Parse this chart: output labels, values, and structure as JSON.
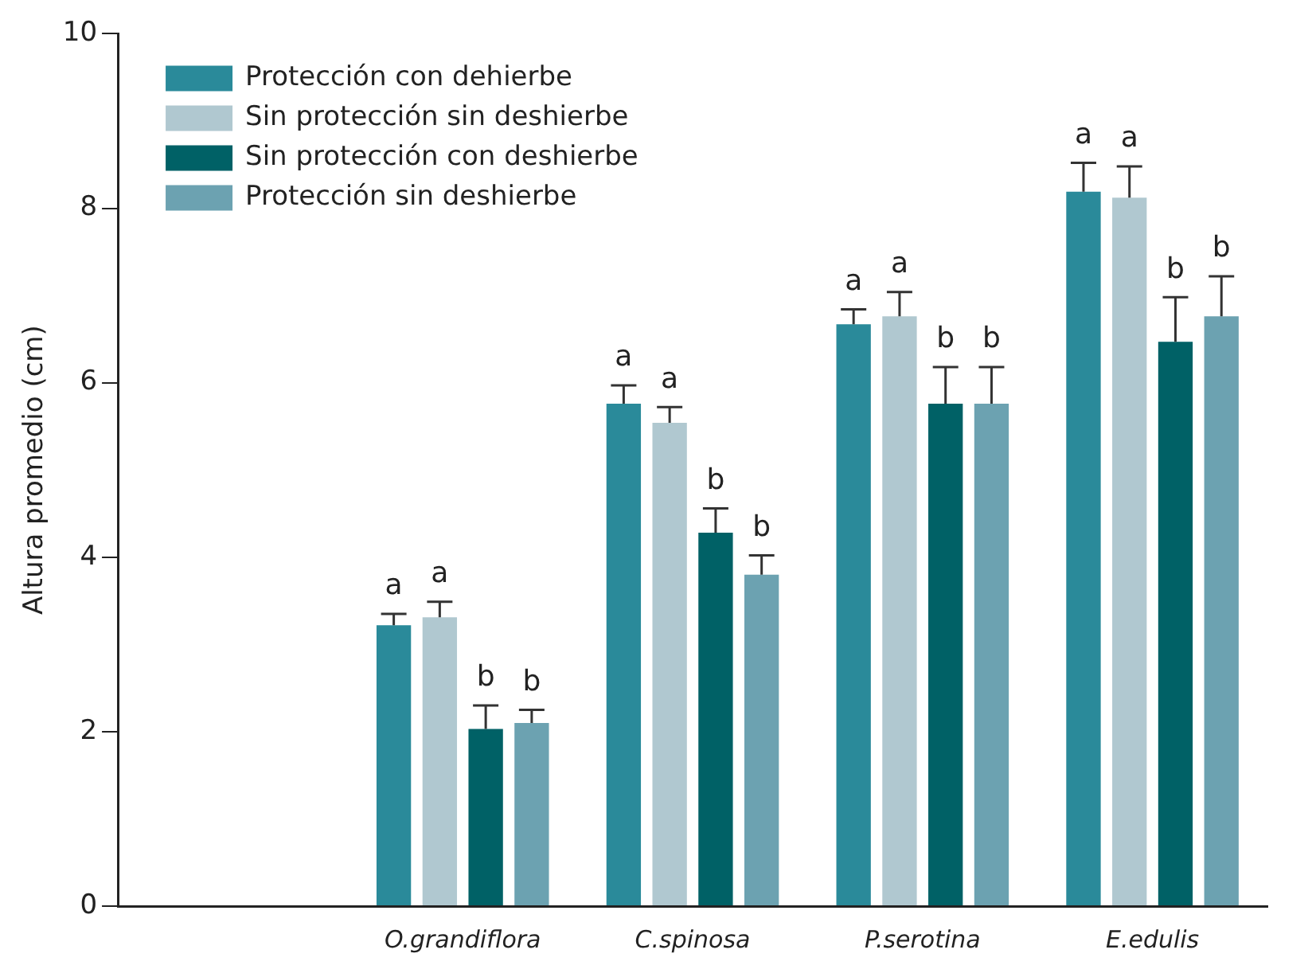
{
  "chart_data": {
    "type": "bar",
    "ylabel": "Altura promedio (cm)",
    "categories": [
      null,
      "O.grandiflora",
      "C.spinosa",
      "P.serotina",
      "E.edulis"
    ],
    "ylim": [
      0,
      10
    ],
    "yticks": [
      0,
      2,
      4,
      6,
      8,
      10
    ],
    "grid": false,
    "legend": "top left",
    "series": [
      {
        "name": "Protección con dehierbe",
        "color": "#2a8a9a",
        "values": [
          null,
          3.22,
          5.76,
          6.67,
          8.19
        ],
        "errors": [
          null,
          0.13,
          0.21,
          0.17,
          0.33
        ],
        "value_labels": [
          null,
          "a",
          "a",
          "a",
          "a"
        ]
      },
      {
        "name": "Sin protección sin deshierbe",
        "color": "#b0c8d0",
        "values": [
          null,
          3.31,
          5.54,
          6.76,
          8.12
        ],
        "errors": [
          null,
          0.18,
          0.18,
          0.28,
          0.36
        ],
        "value_labels": [
          null,
          "a",
          "a",
          "a",
          "a"
        ]
      },
      {
        "name": "Sin protección con deshierbe",
        "color": "#006166",
        "values": [
          null,
          2.03,
          4.28,
          5.76,
          6.47
        ],
        "errors": [
          null,
          0.27,
          0.28,
          0.42,
          0.51
        ],
        "value_labels": [
          null,
          "b",
          "b",
          "b",
          "b"
        ]
      },
      {
        "name": "Protección sin deshierbe",
        "color": "#6ca2b1",
        "values": [
          null,
          2.1,
          3.8,
          5.76,
          6.76
        ],
        "errors": [
          null,
          0.15,
          0.22,
          0.42,
          0.46
        ],
        "value_labels": [
          null,
          "b",
          "b",
          "b",
          "b"
        ]
      }
    ]
  }
}
